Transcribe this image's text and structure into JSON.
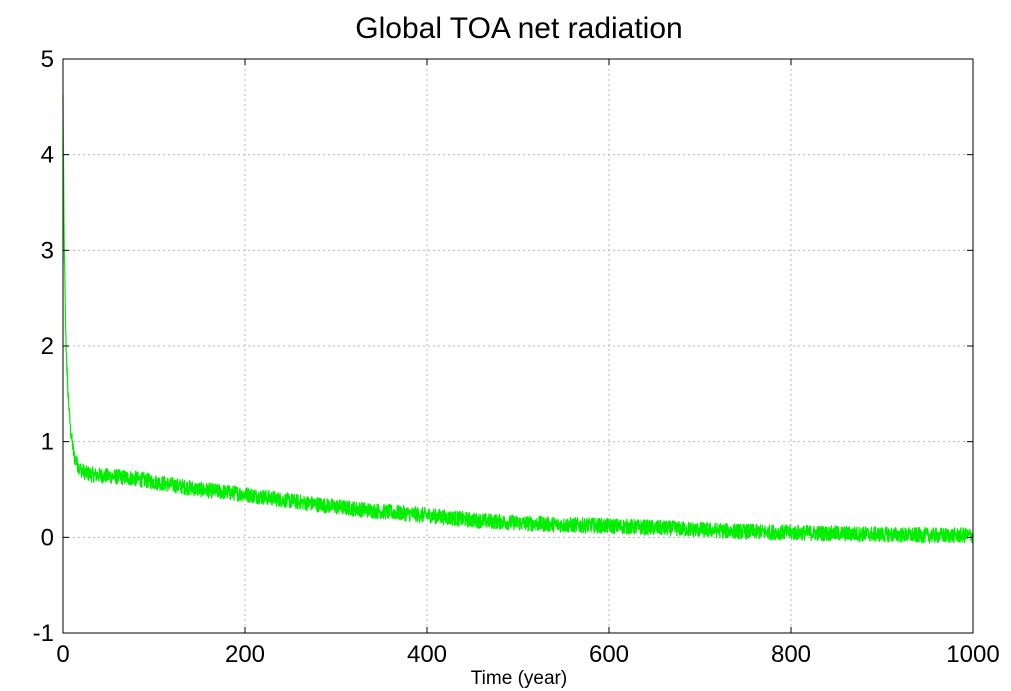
{
  "chart_data": {
    "type": "line",
    "title": "Global TOA net radiation",
    "xlabel": "Time (year)",
    "ylabel": "",
    "xlim": [
      0,
      1000
    ],
    "ylim": [
      -1,
      5
    ],
    "x_ticks": [
      0,
      200,
      400,
      600,
      800,
      1000
    ],
    "y_ticks": [
      -1,
      0,
      1,
      2,
      3,
      4,
      5
    ],
    "x_tick_labels": [
      "0",
      "200",
      "400",
      "600",
      "800",
      "1000"
    ],
    "y_tick_labels": [
      "-1",
      "0",
      "1",
      "2",
      "3",
      "4",
      "5"
    ],
    "grid": true,
    "colors": {
      "series": "#00ee00",
      "grid": "#b8b8b8",
      "frame": "#000000"
    },
    "series": [
      {
        "name": "",
        "color": "#00ee00",
        "x": [
          0,
          1,
          2,
          3,
          5,
          8,
          12,
          18,
          25,
          35,
          50,
          75,
          100,
          150,
          200,
          250,
          300,
          350,
          400,
          450,
          500,
          550,
          600,
          650,
          700,
          750,
          800,
          850,
          900,
          950,
          1000
        ],
        "y": [
          4.6,
          3.3,
          2.7,
          2.1,
          1.6,
          1.15,
          0.85,
          0.72,
          0.67,
          0.65,
          0.64,
          0.62,
          0.58,
          0.5,
          0.45,
          0.38,
          0.32,
          0.27,
          0.23,
          0.18,
          0.15,
          0.13,
          0.12,
          0.1,
          0.08,
          0.06,
          0.05,
          0.04,
          0.03,
          0.02,
          0.02
        ],
        "noise_amplitude": 0.08
      }
    ]
  }
}
